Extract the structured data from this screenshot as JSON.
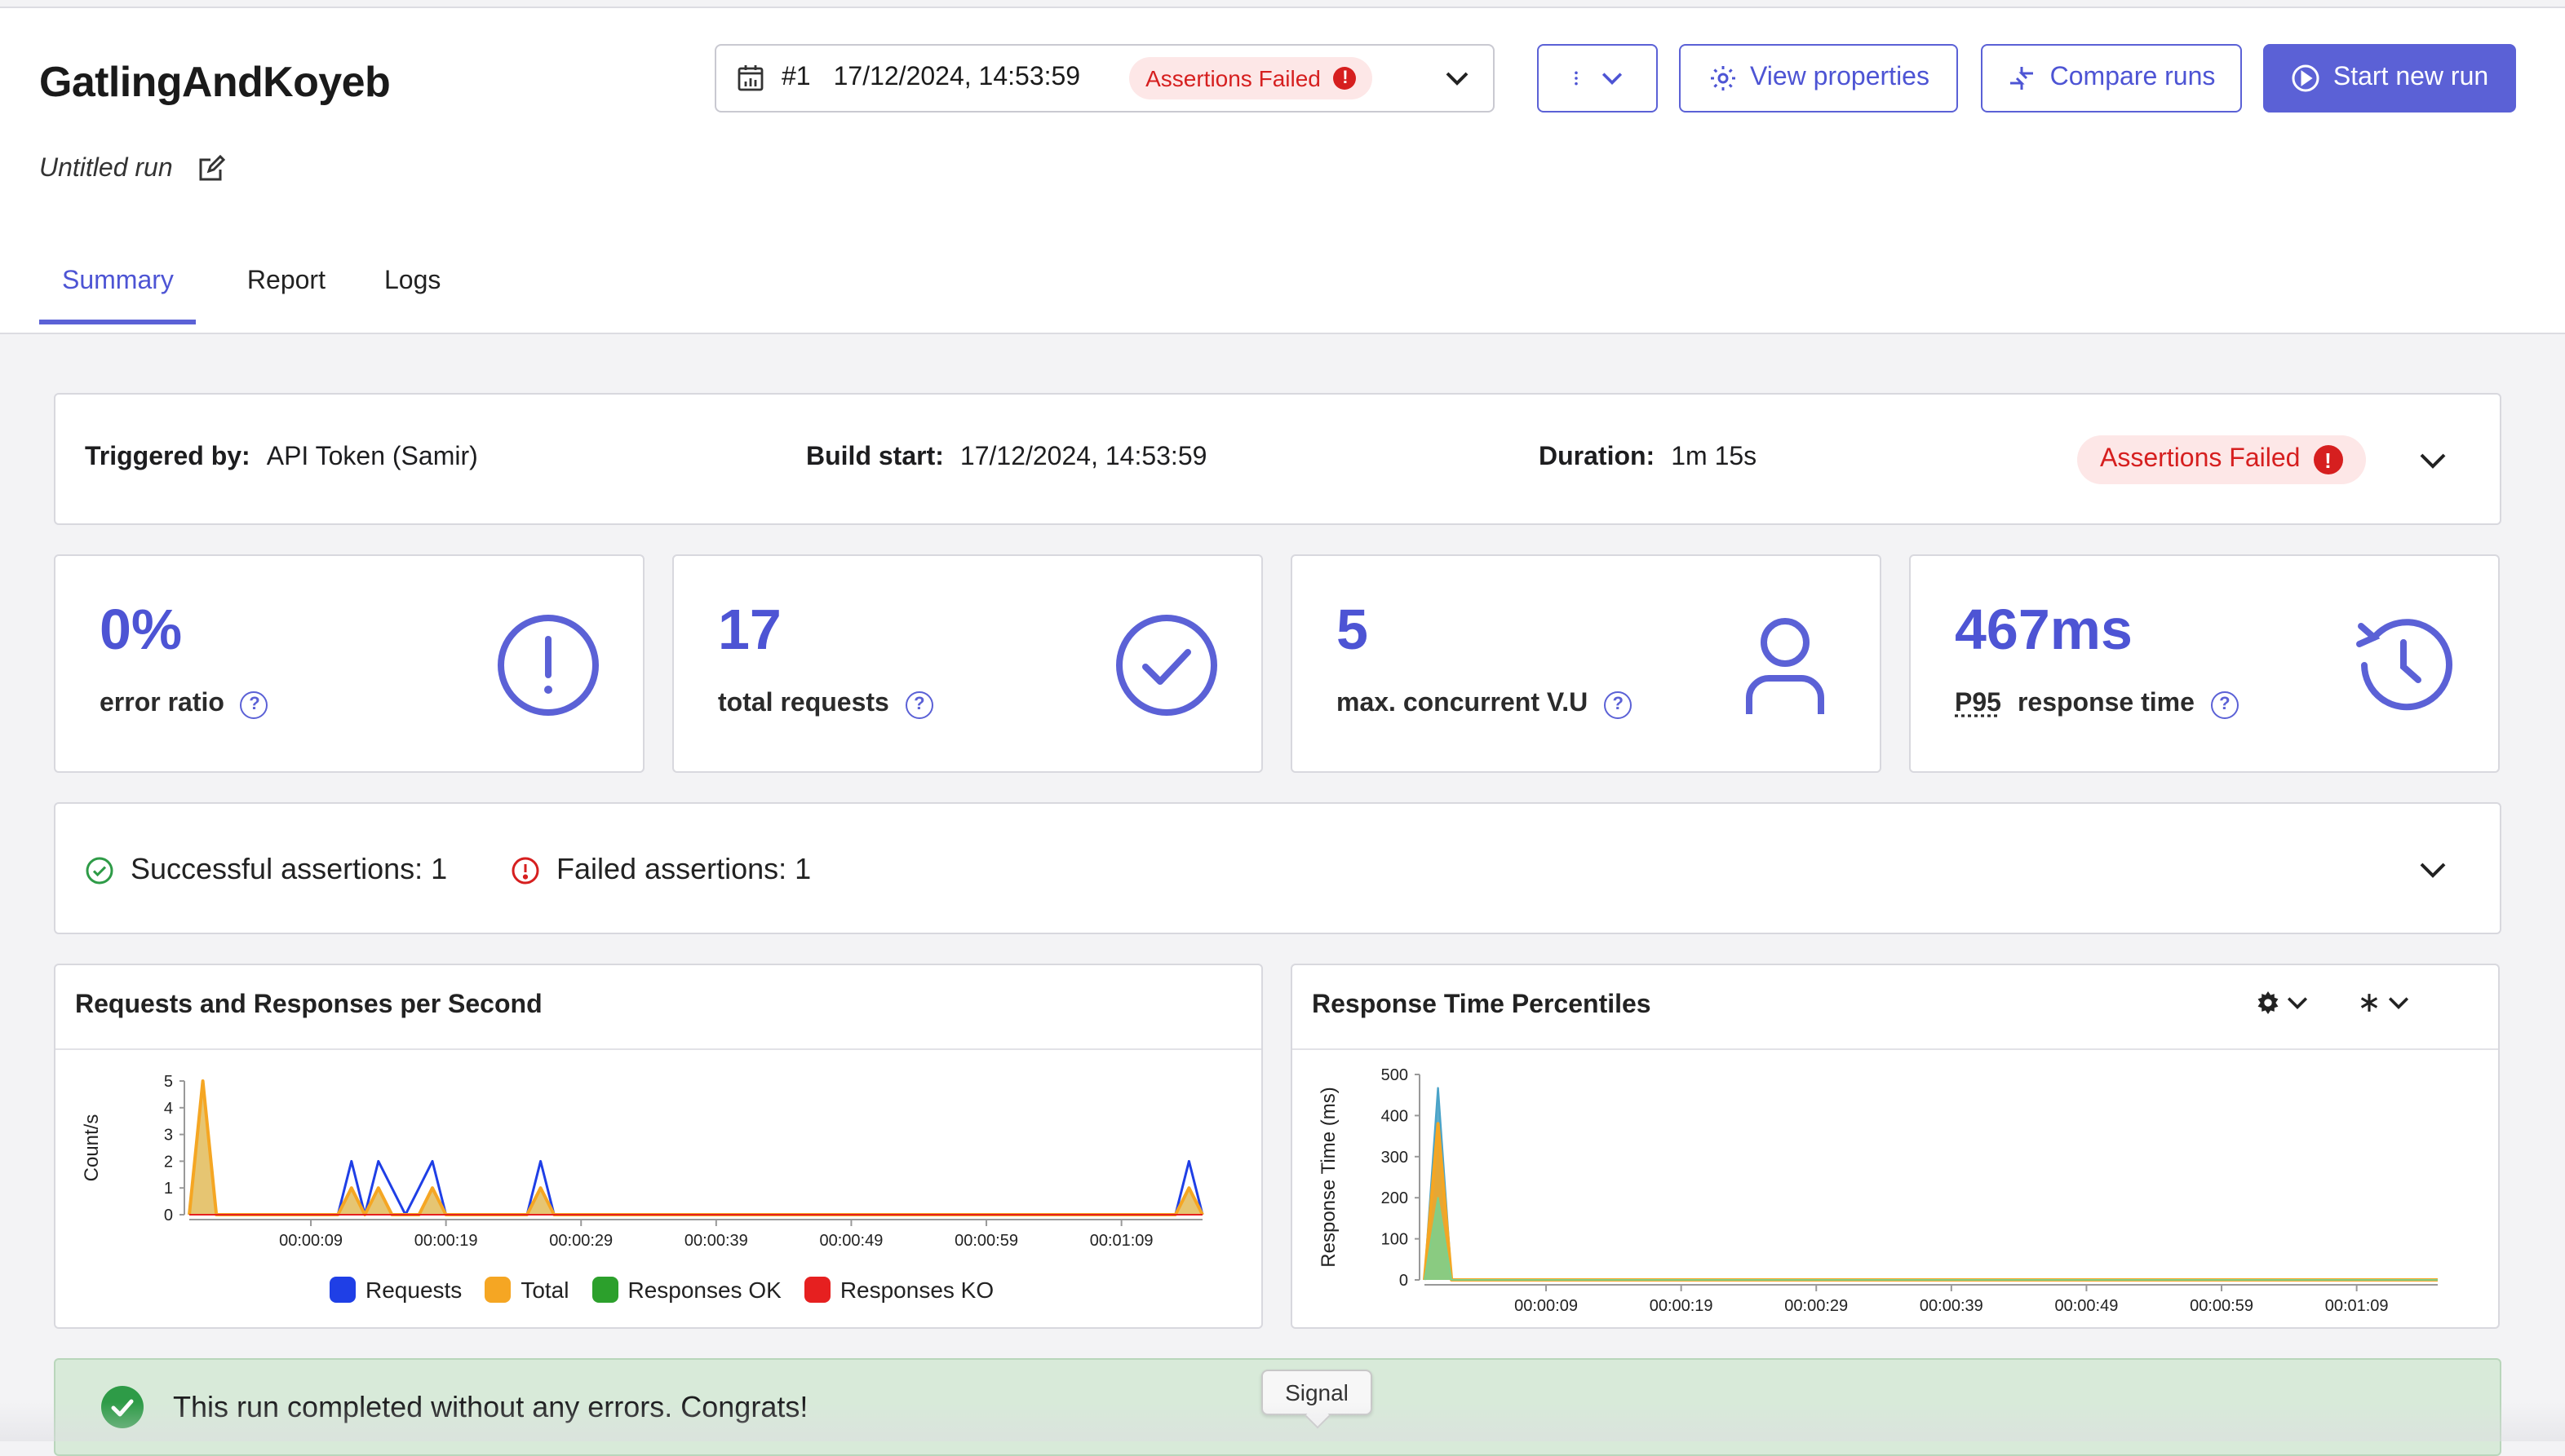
{
  "header": {
    "title": "GatlingAndKoyeb",
    "run_name": "Untitled run",
    "run_select": {
      "number": "#1",
      "datetime": "17/12/2024, 14:53:59",
      "status": "Assertions Failed"
    },
    "buttons": {
      "view_properties": "View properties",
      "compare_runs": "Compare runs",
      "start_new_run": "Start new run"
    },
    "tabs": [
      "Summary",
      "Report",
      "Logs"
    ],
    "active_tab": "Summary"
  },
  "info": {
    "triggered_label": "Triggered by:",
    "triggered_value": "API Token (Samir)",
    "build_label": "Build start:",
    "build_value": "17/12/2024, 14:53:59",
    "duration_label": "Duration:",
    "duration_value": "1m 15s",
    "status": "Assertions Failed"
  },
  "stats": [
    {
      "value": "0%",
      "label": "error ratio",
      "icon": "exclamation-circle-icon"
    },
    {
      "value": "17",
      "label": "total requests",
      "icon": "check-circle-icon"
    },
    {
      "value": "5",
      "label": "max. concurrent V.U",
      "icon": "user-icon"
    },
    {
      "value": "467ms",
      "label_prefix": "P95",
      "label": "response time",
      "icon": "history-icon"
    }
  ],
  "assertions": {
    "successful": "Successful assertions: 1",
    "failed": "Failed assertions: 1"
  },
  "charts": {
    "rps_title": "Requests and Responses per Second",
    "rt_title": "Response Time Percentiles",
    "question_mark": "?",
    "exclamation": "!"
  },
  "chart_data": [
    {
      "type": "area",
      "title": "Requests and Responses per Second",
      "ylabel": "Count/s",
      "ylim": [
        0,
        5
      ],
      "yticks": [
        "0",
        "1",
        "2",
        "3",
        "4",
        "5"
      ],
      "xticks": [
        "00:00:09",
        "00:00:19",
        "00:00:29",
        "00:00:39",
        "00:00:49",
        "00:00:59",
        "00:01:09"
      ],
      "x_seconds": [
        0,
        1,
        2,
        3,
        4,
        5,
        6,
        7,
        8,
        9,
        10,
        11,
        12,
        13,
        14,
        15,
        16,
        17,
        18,
        19,
        20,
        21,
        22,
        23,
        24,
        25,
        26,
        27,
        28,
        29,
        30,
        31,
        32,
        33,
        34,
        35,
        36,
        37,
        38,
        39,
        40,
        41,
        42,
        43,
        44,
        45,
        46,
        47,
        48,
        49,
        50,
        51,
        52,
        53,
        54,
        55,
        56,
        57,
        58,
        59,
        60,
        61,
        62,
        63,
        64,
        65,
        66,
        67,
        68,
        69,
        70,
        71,
        72,
        73,
        74,
        75
      ],
      "series": [
        {
          "name": "Requests",
          "color": "#1f3fe6",
          "values": [
            0,
            5,
            0,
            0,
            0,
            0,
            0,
            0,
            0,
            0,
            0,
            0,
            2,
            0,
            2,
            1,
            0,
            1,
            2,
            0,
            0,
            0,
            0,
            0,
            0,
            0,
            2,
            0,
            0,
            0,
            0,
            0,
            0,
            0,
            0,
            0,
            0,
            0,
            0,
            0,
            0,
            0,
            0,
            0,
            0,
            0,
            0,
            0,
            0,
            0,
            0,
            0,
            0,
            0,
            0,
            0,
            0,
            0,
            0,
            0,
            0,
            0,
            0,
            0,
            0,
            0,
            0,
            0,
            0,
            0,
            0,
            0,
            0,
            0,
            2,
            0
          ]
        },
        {
          "name": "Total",
          "color": "#f5a623",
          "values": [
            0,
            5,
            0,
            0,
            0,
            0,
            0,
            0,
            0,
            0,
            0,
            0,
            1,
            0,
            1,
            0,
            0,
            0,
            1,
            0,
            0,
            0,
            0,
            0,
            0,
            0,
            1,
            0,
            0,
            0,
            0,
            0,
            0,
            0,
            0,
            0,
            0,
            0,
            0,
            0,
            0,
            0,
            0,
            0,
            0,
            0,
            0,
            0,
            0,
            0,
            0,
            0,
            0,
            0,
            0,
            0,
            0,
            0,
            0,
            0,
            0,
            0,
            0,
            0,
            0,
            0,
            0,
            0,
            0,
            0,
            0,
            0,
            0,
            0,
            1,
            0
          ]
        },
        {
          "name": "Responses OK",
          "color": "#2ca02c",
          "values": [
            0,
            5,
            0,
            0,
            0,
            0,
            0,
            0,
            0,
            0,
            0,
            0,
            1,
            0,
            1,
            0,
            0,
            0,
            1,
            0,
            0,
            0,
            0,
            0,
            0,
            0,
            1,
            0,
            0,
            0,
            0,
            0,
            0,
            0,
            0,
            0,
            0,
            0,
            0,
            0,
            0,
            0,
            0,
            0,
            0,
            0,
            0,
            0,
            0,
            0,
            0,
            0,
            0,
            0,
            0,
            0,
            0,
            0,
            0,
            0,
            0,
            0,
            0,
            0,
            0,
            0,
            0,
            0,
            0,
            0,
            0,
            0,
            0,
            0,
            1,
            0
          ]
        },
        {
          "name": "Responses KO",
          "color": "#e62020",
          "values": [
            0,
            0,
            0,
            0,
            0,
            0,
            0,
            0,
            0,
            0,
            0,
            0,
            0,
            0,
            0,
            0,
            0,
            0,
            0,
            0,
            0,
            0,
            0,
            0,
            0,
            0,
            0,
            0,
            0,
            0,
            0,
            0,
            0,
            0,
            0,
            0,
            0,
            0,
            0,
            0,
            0,
            0,
            0,
            0,
            0,
            0,
            0,
            0,
            0,
            0,
            0,
            0,
            0,
            0,
            0,
            0,
            0,
            0,
            0,
            0,
            0,
            0,
            0,
            0,
            0,
            0,
            0,
            0,
            0,
            0,
            0,
            0,
            0,
            0,
            0,
            0
          ]
        }
      ],
      "legend": "bottom"
    },
    {
      "type": "area",
      "title": "Response Time Percentiles",
      "ylabel": "Response Time (ms)",
      "ylim": [
        0,
        500
      ],
      "yticks": [
        "0",
        "100",
        "200",
        "300",
        "400",
        "500"
      ],
      "xticks": [
        "00:00:09",
        "00:00:19",
        "00:00:29",
        "00:00:39",
        "00:00:49",
        "00:00:59",
        "00:01:09"
      ],
      "x_seconds": [
        0,
        1,
        2,
        75
      ],
      "series": [
        {
          "color": "#4aa3c8",
          "values": [
            0,
            467,
            0,
            0
          ]
        },
        {
          "color": "#f5a623",
          "values": [
            0,
            380,
            0,
            0
          ]
        },
        {
          "color": "#7fcf8a",
          "values": [
            0,
            200,
            0,
            0
          ]
        }
      ]
    }
  ],
  "success_message": "This run completed without any errors. Congrats!",
  "tooltip": "Signal",
  "colors": {
    "accent": "#5b61d6",
    "danger": "#d61f1f",
    "success": "#2e9b47"
  }
}
